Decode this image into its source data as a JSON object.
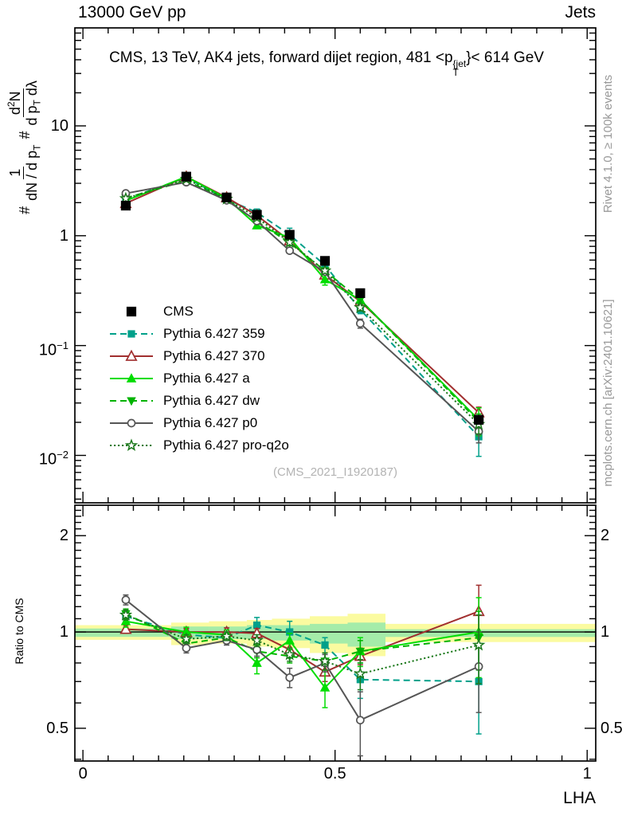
{
  "header": {
    "left": "13000 GeV pp",
    "right": "Jets"
  },
  "title": {
    "pre": "CMS, 13 TeV, AK4 jets, forward dijet region, 481 <p",
    "sup": "{jet",
    "sub": "T",
    "post": "}< 614 GeV"
  },
  "y_axis_label": {
    "hash1": "#",
    "num1": "1",
    "den1": "dN / d p",
    "den1_sub": "T",
    "hash2": "#",
    "num2_d": "d",
    "num2_exp": "2",
    "num2_N": "N",
    "den2": "d p",
    "den2_sub": "T",
    "den2_tail": " dλ"
  },
  "side_texts": {
    "rivet": "Rivet 4.1.0, ≥ 100k events",
    "mcplots": "mcplots.cern.ch [arXiv:2401.10621]"
  },
  "watermark": "(CMS_2021_I1920187)",
  "chart_data": {
    "type": "line",
    "title": "CMS, 13 TeV, AK4 jets, forward dijet region, 481 < pT^{jet} < 614 GeV",
    "xlabel": "LHA",
    "ylabel": "# 1/(dN/dpT) # d2N/(dpT dlambda)",
    "ratio_ylabel": "Ratio to CMS",
    "xlim": [
      -0.016,
      1.017
    ],
    "x_minor_step": 0.05,
    "xticks": [
      {
        "v": 0,
        "t": "0"
      },
      {
        "v": 0.5,
        "t": "0.5"
      },
      {
        "v": 1,
        "t": "1"
      }
    ],
    "main": {
      "ylog": true,
      "ylim": [
        0.0037,
        78
      ],
      "yticks": [
        {
          "v": 10,
          "b": "10",
          "e": ""
        },
        {
          "v": 1,
          "b": "1",
          "e": ""
        },
        {
          "v": 0.1,
          "b": "10",
          "e": "−1"
        },
        {
          "v": 0.01,
          "b": "10",
          "e": "−2"
        }
      ]
    },
    "ratio": {
      "ylog": true,
      "ylim": [
        0.395,
        2.49
      ],
      "yticks": [
        {
          "v": 2,
          "t": "2"
        },
        {
          "v": 1,
          "t": "1"
        },
        {
          "v": 0.5,
          "t": "0.5"
        }
      ],
      "minor_from": 0.4,
      "minor_to": 2.4,
      "minor_step": 0.1
    },
    "x": [
      0.085,
      0.205,
      0.285,
      0.345,
      0.41,
      0.48,
      0.55,
      0.785
    ],
    "bands": {
      "edges": [
        -0.016,
        0.175,
        0.25,
        0.325,
        0.375,
        0.45,
        0.525,
        0.6,
        1.017
      ],
      "yellow": {
        "color": "#fbfba0",
        "lo": [
          0.945,
          0.91,
          0.92,
          0.9,
          0.89,
          0.86,
          0.84,
          0.93
        ],
        "hi": [
          1.05,
          1.07,
          1.08,
          1.09,
          1.1,
          1.12,
          1.14,
          1.06
        ]
      },
      "green": {
        "color": "#a5eca9",
        "lo": [
          0.965,
          0.95,
          0.95,
          0.95,
          0.94,
          0.92,
          0.9,
          0.965
        ],
        "hi": [
          1.025,
          1.04,
          1.04,
          1.05,
          1.05,
          1.06,
          1.07,
          1.02
        ]
      }
    },
    "series": [
      {
        "label": "CMS",
        "color": "#000000",
        "line": "none",
        "marker": "square",
        "fill": true,
        "msize": 5.5,
        "values": [
          1.88,
          3.45,
          2.23,
          1.55,
          1.02,
          0.59,
          0.3,
          0.0211
        ],
        "errors": [
          0.07,
          0.1,
          0.07,
          0.05,
          0.035,
          0.02,
          0.013,
          0.0018
        ],
        "ratio": null,
        "ratio_errors": null
      },
      {
        "label": "Pythia 6.427 359",
        "color": "#00a08a",
        "line": "dash",
        "marker": "square",
        "fill": true,
        "msize": 4,
        "values": [
          2.16,
          3.38,
          2.14,
          1.63,
          1.02,
          0.54,
          0.213,
          0.0148
        ],
        "errors": [
          0.09,
          0.1,
          0.07,
          0.12,
          0.15,
          0.03,
          0.018,
          0.005
        ],
        "ratio": [
          1.12,
          0.98,
          0.96,
          1.05,
          1.0,
          0.91,
          0.71,
          0.7
        ],
        "ratio_errors": [
          0.04,
          0.03,
          0.03,
          0.06,
          0.08,
          0.05,
          0.09,
          0.22
        ]
      },
      {
        "label": "Pythia 6.427 370",
        "color": "#a12f2f",
        "line": "solid",
        "marker": "triangle-up",
        "fill": false,
        "msize": 6.5,
        "values": [
          1.97,
          3.45,
          2.23,
          1.53,
          0.9,
          0.44,
          0.252,
          0.0245
        ],
        "errors": [
          0.07,
          0.1,
          0.07,
          0.05,
          0.035,
          0.025,
          0.013,
          0.003
        ],
        "ratio": [
          1.02,
          1.0,
          1.0,
          0.99,
          0.88,
          0.75,
          0.84,
          1.16
        ],
        "ratio_errors": [
          0.03,
          0.025,
          0.03,
          0.035,
          0.04,
          0.05,
          0.05,
          0.24
        ]
      },
      {
        "label": "Pythia 6.427 a",
        "color": "#00dd00",
        "line": "solid",
        "marker": "triangle-up",
        "fill": true,
        "msize": 5.5,
        "values": [
          2.08,
          3.45,
          2.19,
          1.24,
          0.96,
          0.4,
          0.261,
          0.0211
        ],
        "errors": [
          0.08,
          0.12,
          0.08,
          0.07,
          0.045,
          0.045,
          0.02,
          0.006
        ],
        "ratio": [
          1.08,
          1.0,
          0.98,
          0.8,
          0.94,
          0.67,
          0.87,
          1.0
        ],
        "ratio_errors": [
          0.045,
          0.035,
          0.035,
          0.06,
          0.05,
          0.09,
          0.09,
          0.28
        ]
      },
      {
        "label": "Pythia 6.427 dw",
        "color": "#00b300",
        "line": "dash",
        "marker": "triangle-down",
        "fill": true,
        "msize": 5,
        "values": [
          2.2,
          3.17,
          2.14,
          1.35,
          0.86,
          0.48,
          0.261,
          0.0203
        ],
        "errors": [
          0.08,
          0.1,
          0.07,
          0.05,
          0.035,
          0.025,
          0.015,
          0.0035
        ],
        "ratio": [
          1.14,
          0.92,
          0.96,
          0.87,
          0.84,
          0.81,
          0.87,
          0.96
        ],
        "ratio_errors": [
          0.04,
          0.03,
          0.03,
          0.04,
          0.04,
          0.05,
          0.07,
          0.2
        ]
      },
      {
        "label": "Pythia 6.427 p0",
        "color": "#555555",
        "line": "solid",
        "marker": "circle",
        "fill": false,
        "msize": 4.5,
        "values": [
          2.43,
          3.07,
          2.1,
          1.36,
          0.73,
          0.47,
          0.159,
          0.0165
        ],
        "errors": [
          0.09,
          0.1,
          0.07,
          0.05,
          0.035,
          0.025,
          0.015,
          0.0035
        ],
        "ratio": [
          1.26,
          0.89,
          0.94,
          0.88,
          0.72,
          0.8,
          0.53,
          0.78
        ],
        "ratio_errors": [
          0.045,
          0.03,
          0.03,
          0.04,
          0.05,
          0.05,
          0.12,
          0.22
        ]
      },
      {
        "label": "Pythia 6.427 pro-q2o",
        "color": "#1e7a1e",
        "line": "dot",
        "marker": "star",
        "fill": false,
        "msize": 6.5,
        "values": [
          2.18,
          3.28,
          2.16,
          1.46,
          0.87,
          0.48,
          0.222,
          0.0192
        ],
        "errors": [
          0.08,
          0.1,
          0.07,
          0.05,
          0.035,
          0.025,
          0.015,
          0.0035
        ],
        "ratio": [
          1.13,
          0.95,
          0.97,
          0.94,
          0.85,
          0.81,
          0.74,
          0.91
        ],
        "ratio_errors": [
          0.04,
          0.03,
          0.03,
          0.04,
          0.04,
          0.05,
          0.08,
          0.22
        ]
      }
    ]
  }
}
